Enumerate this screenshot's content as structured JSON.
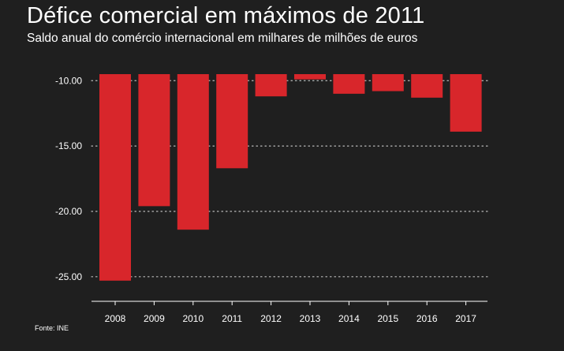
{
  "chart_data": {
    "type": "bar",
    "title": "Défice comercial em máximos de 2011",
    "subtitle": "Saldo anual do comércio internacional em milhares de milhões de euros",
    "source": "Fonte: INE",
    "categories": [
      "2008",
      "2009",
      "2010",
      "2011",
      "2012",
      "2013",
      "2014",
      "2015",
      "2016",
      "2017"
    ],
    "values": [
      -25.3,
      -19.6,
      -21.4,
      -16.7,
      -11.2,
      -9.9,
      -11.0,
      -10.8,
      -11.3,
      -13.9
    ],
    "baseline": -9.5,
    "yticks": [
      -10,
      -15,
      -20,
      -25
    ],
    "ytick_labels": [
      "-10.00",
      "-15.00",
      "-20.00",
      "-25.00"
    ],
    "ylim": [
      -25.7,
      -9.5
    ],
    "grid": true,
    "bar_color": "#d8262b",
    "grid_color": "#bbbbbb",
    "background_color": "#1f1f1f"
  }
}
